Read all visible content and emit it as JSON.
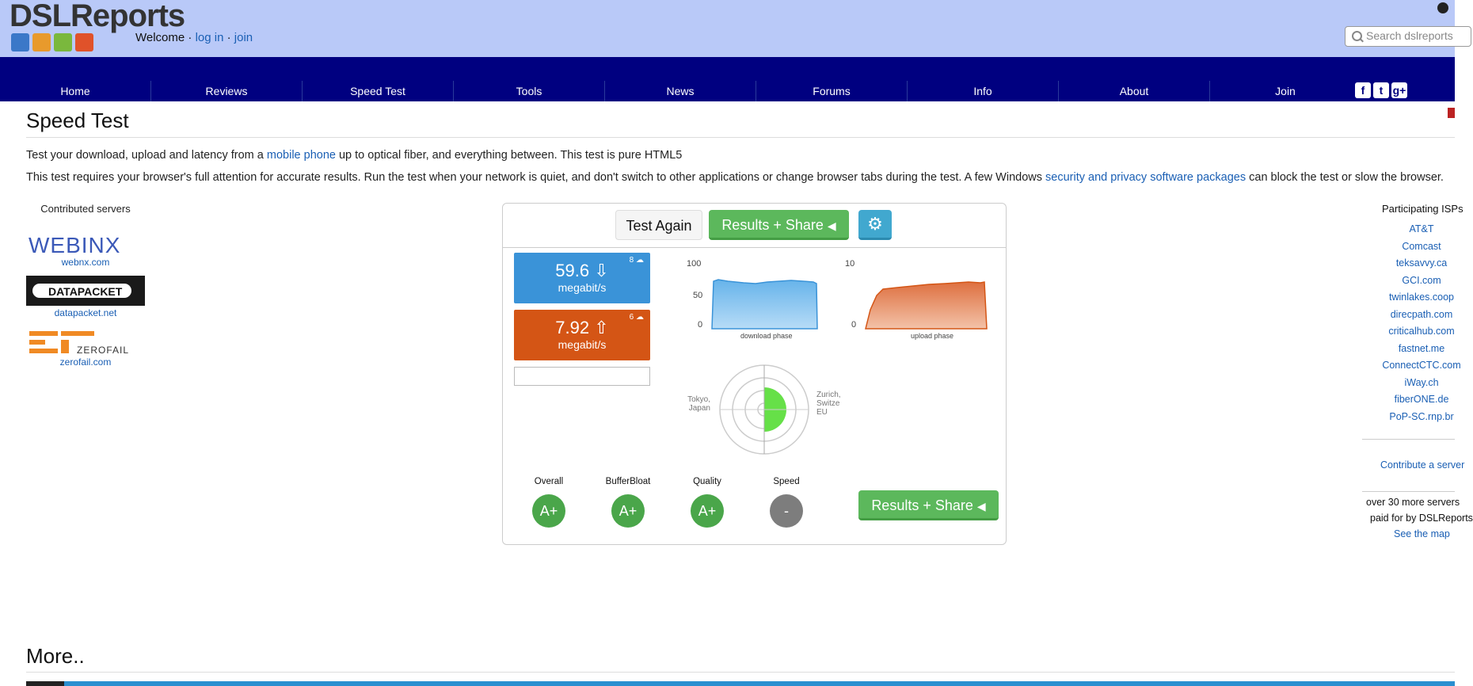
{
  "header": {
    "logo": "DSLReports",
    "welcome": "Welcome",
    "login": "log in",
    "sep": "·",
    "join": "join",
    "search_placeholder": "Search dslreports"
  },
  "nav": [
    "Home",
    "Reviews",
    "Speed Test",
    "Tools",
    "News",
    "Forums",
    "Info",
    "About",
    "Join"
  ],
  "social": {
    "facebook": "f",
    "twitter": "t",
    "google": "g+"
  },
  "page": {
    "title": "Speed Test",
    "intro_a": "Test your download, upload and latency from a ",
    "intro_link": "mobile phone",
    "intro_b": " up to optical fiber, and everything between. This test is pure HTML5",
    "note_a": "This test requires your browser's full attention for accurate results. Run the test when your network is quiet, and don't switch to other applications or change browser tabs during the test. A few Windows ",
    "note_link": "security and privacy software packages",
    "note_b": " can block the test or slow the browser."
  },
  "servers": {
    "heading": "Contributed servers",
    "items": [
      {
        "logo": "WEBINX",
        "link": "webnx.com"
      },
      {
        "logo": "DATAPACKET",
        "link": "datapacket.net"
      },
      {
        "logo": "ZEROFAIL",
        "link": "zerofail.com"
      }
    ]
  },
  "test": {
    "again": "Test Again",
    "share": "Results + Share",
    "download": {
      "value": "59.6",
      "unit": "megabit/s",
      "streams": "8"
    },
    "upload": {
      "value": "7.92",
      "unit": "megabit/s",
      "streams": "6"
    },
    "dl_chart": {
      "ymax": "100",
      "ymid": "50",
      "ymin": "0",
      "label": "download phase"
    },
    "ul_chart": {
      "ymax": "10",
      "ymin": "0",
      "label": "upload phase"
    },
    "radar": {
      "left": [
        "Tokyo,",
        "Japan"
      ],
      "right": [
        "Zurich,",
        "Switze",
        "EU"
      ]
    },
    "grades": [
      {
        "label": "Overall",
        "value": "A+"
      },
      {
        "label": "BufferBloat",
        "value": "A+"
      },
      {
        "label": "Quality",
        "value": "A+"
      },
      {
        "label": "Speed",
        "value": "-"
      }
    ]
  },
  "isps": {
    "heading": "Participating ISPs",
    "items": [
      "AT&T",
      "Comcast",
      "teksavvy.ca",
      "GCI.com",
      "twinlakes.coop",
      "direcpath.com",
      "criticalhub.com",
      "fastnet.me",
      "ConnectCTC.com",
      "iWay.ch",
      "fiberONE.de",
      "PoP-SC.rnp.br"
    ],
    "contribute": "Contribute a server",
    "over_a": "over 30 more servers",
    "over_b": "paid for by DSLReports",
    "map": "See the map"
  },
  "more": "More..",
  "colors": {
    "nav": "#000080",
    "header": "#b9c9f8",
    "download": "#3a93d8",
    "upload": "#d45515",
    "grade": "#4aa64a"
  }
}
